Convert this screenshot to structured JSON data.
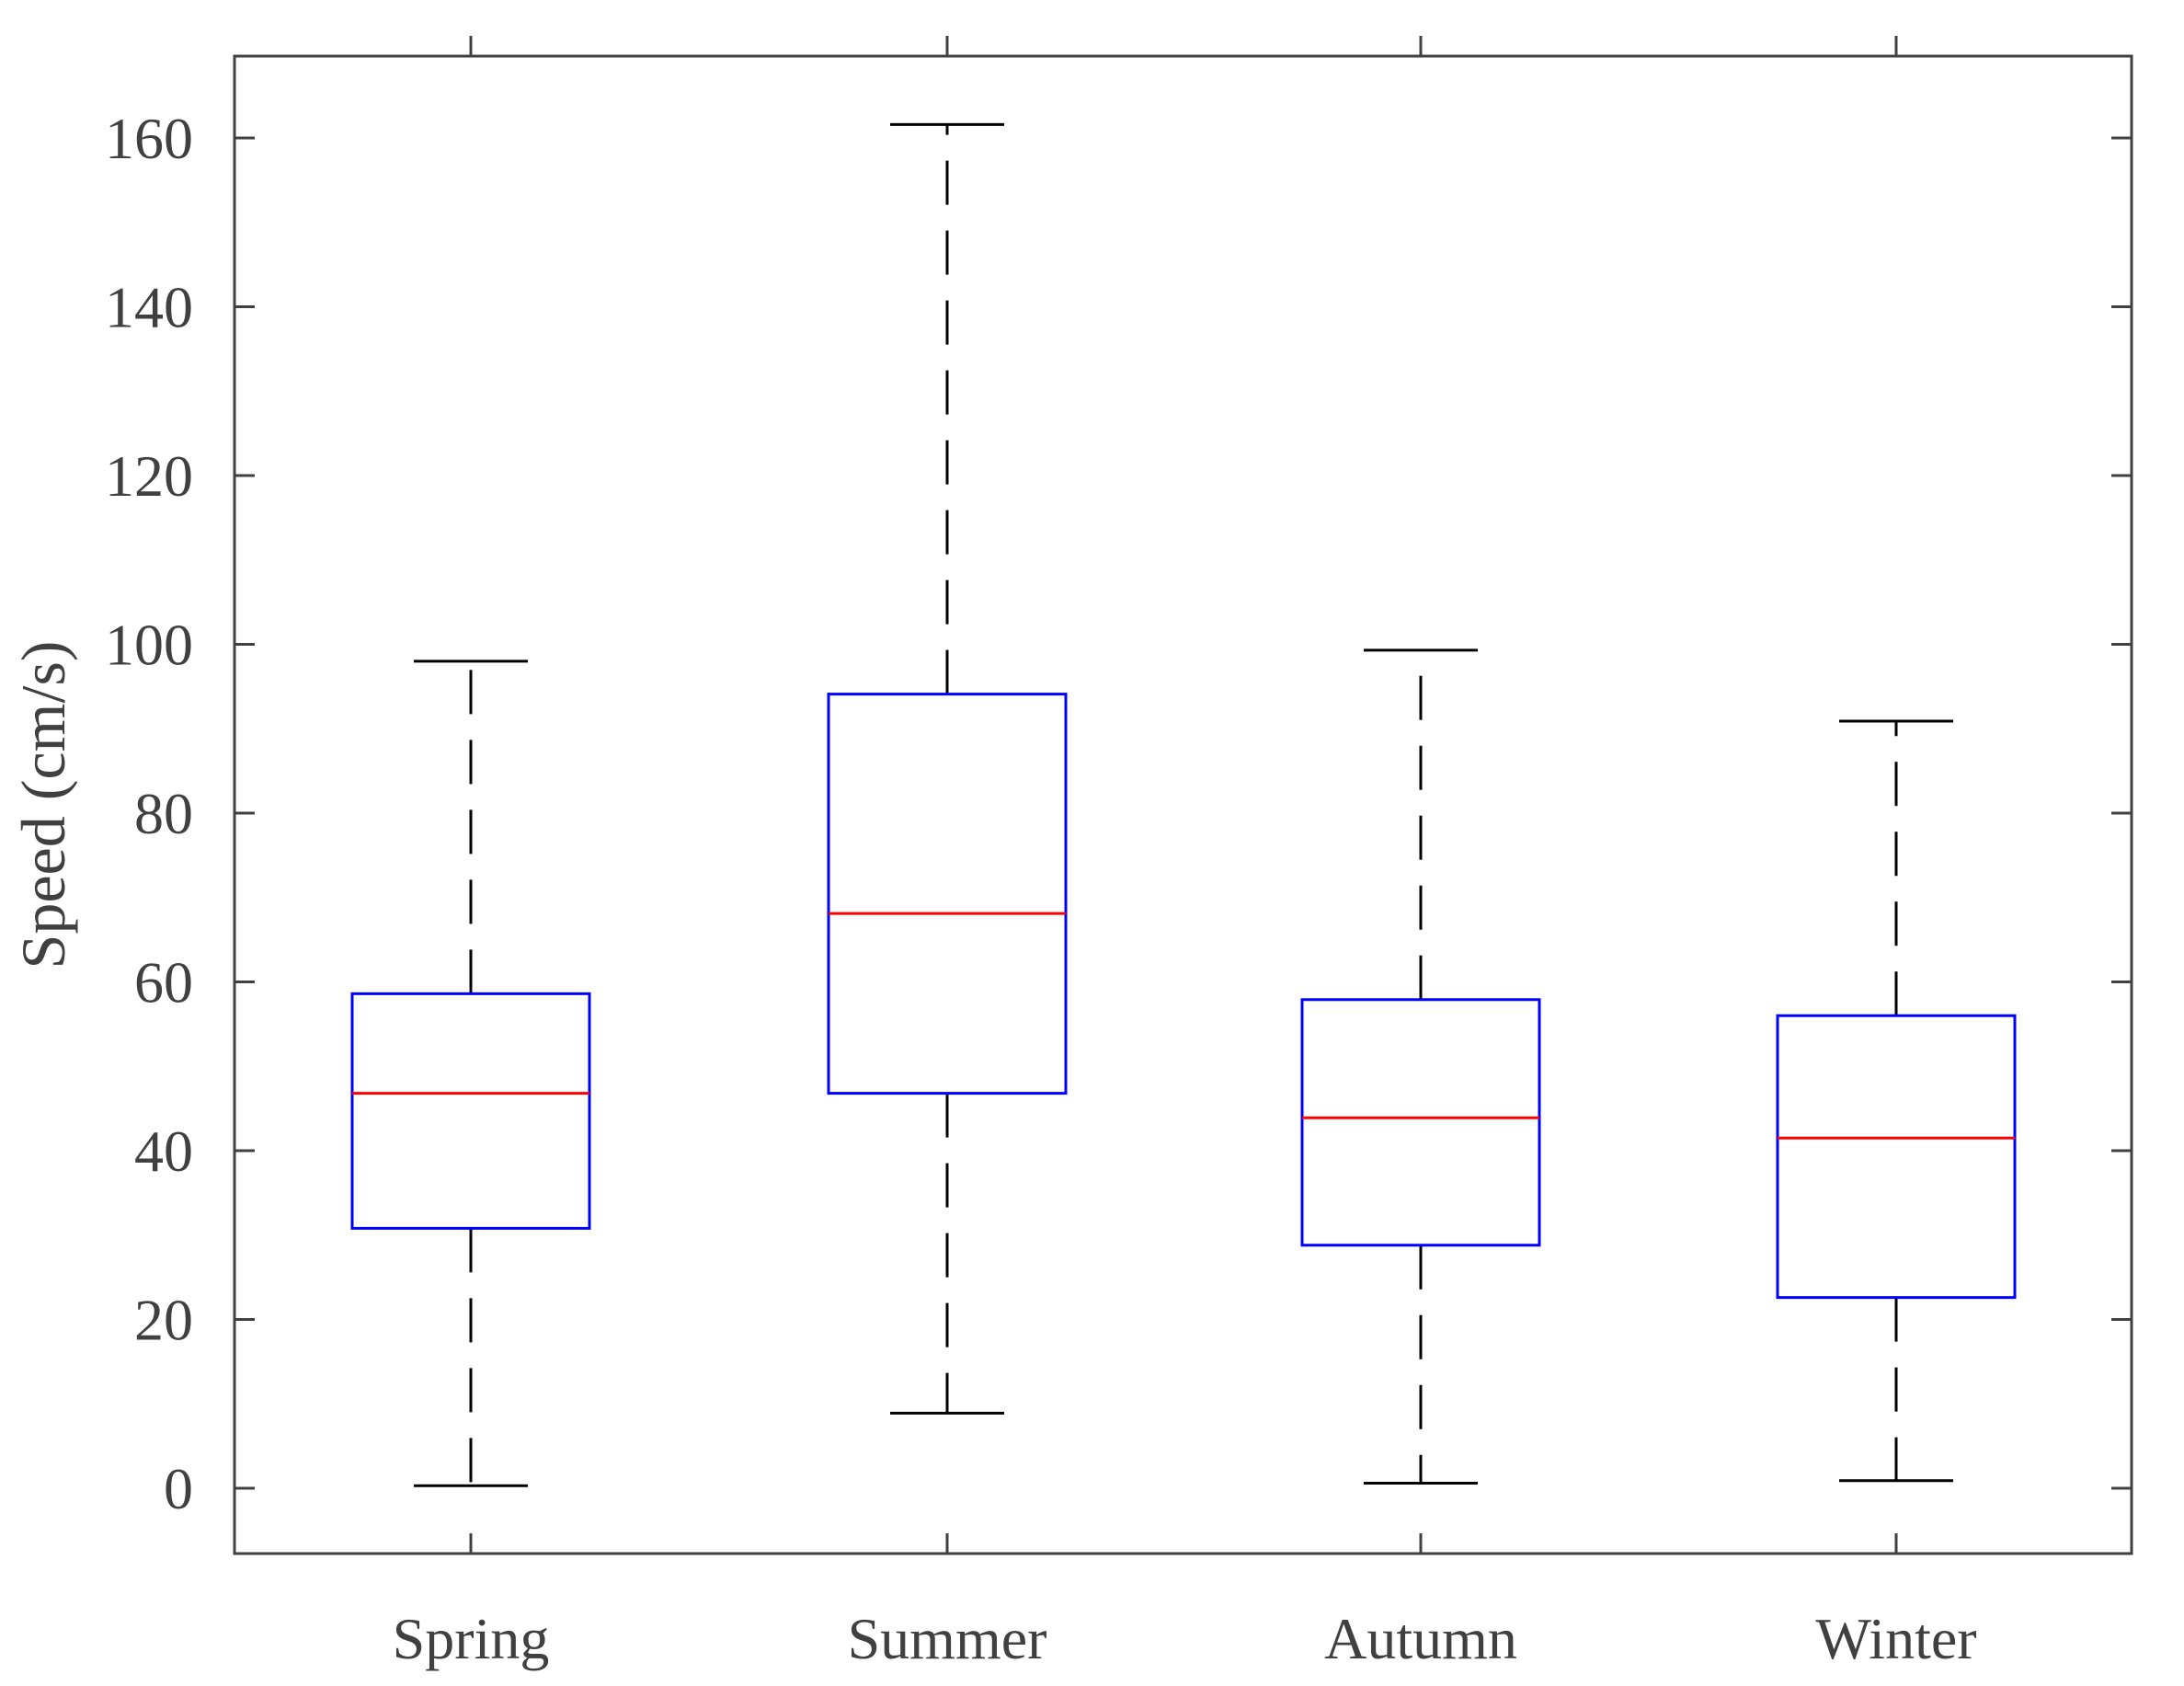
{
  "chart_data": {
    "type": "box",
    "title": "",
    "xlabel": "",
    "ylabel": "Speed (cm/s)",
    "ylim": [
      -8,
      170
    ],
    "yticks": [
      0,
      20,
      40,
      60,
      80,
      100,
      120,
      140,
      160
    ],
    "ytick_labels": [
      "0",
      "20",
      "40",
      "60",
      "80",
      "100",
      "120",
      "140",
      "160"
    ],
    "categories": [
      "Spring",
      "Summer",
      "Autumn",
      "Winter"
    ],
    "boxes": [
      {
        "name": "Spring",
        "whisker_low": 0.3,
        "q1": 30.8,
        "median": 46.8,
        "q3": 58.6,
        "whisker_high": 98.0
      },
      {
        "name": "Summer",
        "whisker_low": 8.9,
        "q1": 46.8,
        "median": 68.1,
        "q3": 94.1,
        "whisker_high": 161.6
      },
      {
        "name": "Autumn",
        "whisker_low": 0.6,
        "q1": 28.8,
        "median": 43.9,
        "q3": 57.9,
        "whisker_high": 99.3
      },
      {
        "name": "Winter",
        "whisker_low": 0.9,
        "q1": 22.6,
        "median": 41.5,
        "q3": 56.0,
        "whisker_high": 90.9
      }
    ],
    "grid": false,
    "colors": {
      "box": "#0000ff",
      "median": "#ff0000",
      "whisker": "#000000",
      "axis": "#404040"
    }
  }
}
